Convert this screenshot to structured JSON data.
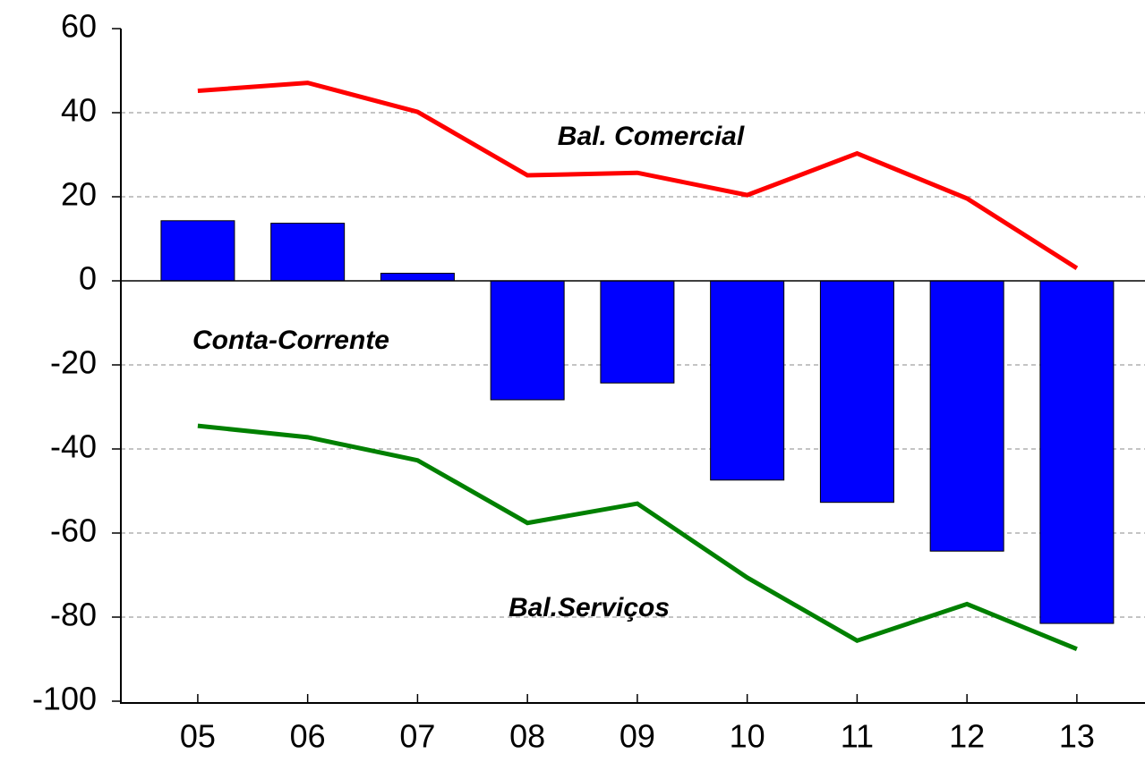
{
  "chart_data": {
    "type": "bar_line",
    "categories": [
      "05",
      "06",
      "07",
      "08",
      "09",
      "10",
      "11",
      "12",
      "13"
    ],
    "series": [
      {
        "name": "Conta-Corrente",
        "type": "bar",
        "color": "#0000ff",
        "values": [
          14.3,
          13.7,
          1.8,
          -28.3,
          -24.3,
          -47.4,
          -52.7,
          -64.3,
          -81.5
        ]
      },
      {
        "name": "Bal. Comercial",
        "type": "line",
        "color": "#ff0000",
        "values": [
          45.2,
          47.1,
          40.2,
          25.1,
          25.7,
          20.4,
          30.3,
          19.6,
          3.0
        ]
      },
      {
        "name": "Bal.Serviços",
        "type": "line",
        "color": "#008000",
        "values": [
          -34.5,
          -37.2,
          -42.7,
          -57.6,
          -53.0,
          -70.6,
          -85.6,
          -76.9,
          -87.6
        ]
      }
    ],
    "ylim": [
      -100,
      60
    ],
    "yticks": [
      -100,
      -80,
      -60,
      -40,
      -20,
      0,
      20,
      40,
      60
    ],
    "grid": true
  }
}
